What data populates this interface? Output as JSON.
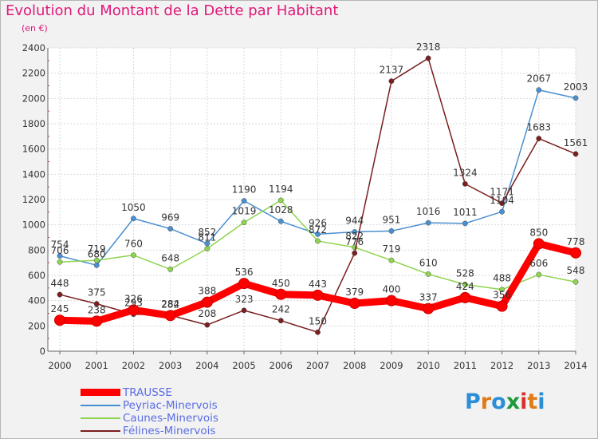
{
  "title": "Evolution du Montant de la Dette par Habitant",
  "unit": "(en €)",
  "logo": {
    "letters": [
      "P",
      "r",
      "o",
      "x",
      "i",
      "t",
      "i"
    ],
    "colors": [
      "#2c8fd6",
      "#e07b16",
      "#2c8fd6",
      "#1c9a3c",
      "#d83030",
      "#e07b16",
      "#2c8fd6"
    ]
  },
  "chart_data": {
    "type": "line",
    "x": [
      "2000",
      "2001",
      "2002",
      "2003",
      "2004",
      "2005",
      "2006",
      "2007",
      "2008",
      "2009",
      "2010",
      "2011",
      "2012",
      "2013",
      "2014"
    ],
    "yticks": [
      "0",
      "200",
      "400",
      "600",
      "800",
      "1000",
      "1200",
      "1400",
      "1600",
      "1800",
      "2000",
      "2200",
      "2400"
    ],
    "ylim": [
      0,
      2400
    ],
    "grid": true,
    "legend_position": "bottom-left",
    "series": [
      {
        "name": "Peyriac-Minervois",
        "color": "#4a8fcf",
        "values": [
          754,
          680,
          1050,
          969,
          852,
          1190,
          1028,
          926,
          944,
          951,
          1016,
          1011,
          1104,
          2067,
          2003
        ],
        "labels": [
          "754",
          "680",
          "1050",
          "969",
          "852",
          "1190",
          "1028",
          "926",
          "944",
          "951",
          "1016",
          "1011",
          "1104",
          "2067",
          "2003"
        ]
      },
      {
        "name": "Caunes-Minervois",
        "color": "#8ed44f",
        "values": [
          706,
          719,
          760,
          648,
          811,
          1019,
          1194,
          872,
          822,
          719,
          610,
          528,
          488,
          606,
          548
        ],
        "labels": [
          "706",
          "719",
          "760",
          "648",
          "811",
          "1019",
          "1194",
          "872",
          "822",
          "719",
          "610",
          "528",
          "488",
          "606",
          "548"
        ]
      },
      {
        "name": "Félines-Minervois",
        "color": "#7a1e1e",
        "values": [
          448,
          375,
          293,
          284,
          208,
          323,
          242,
          150,
          776,
          2137,
          2318,
          1324,
          1171,
          1683,
          1561
        ],
        "labels": [
          "448",
          "375",
          "293",
          "284",
          "208",
          "323",
          "242",
          "150",
          "776",
          "2137",
          "2318",
          "1324",
          "1171",
          "1683",
          "1561"
        ]
      },
      {
        "name": "TRAUSSE",
        "color": "#ff0000",
        "values": [
          245,
          238,
          326,
          282,
          388,
          536,
          450,
          443,
          379,
          400,
          337,
          424,
          356,
          850,
          778
        ],
        "labels": [
          "245",
          "238",
          "326",
          "282",
          "388",
          "536",
          "450",
          "443",
          "379",
          "400",
          "337",
          "424",
          "356",
          "850",
          "778"
        ]
      }
    ]
  }
}
